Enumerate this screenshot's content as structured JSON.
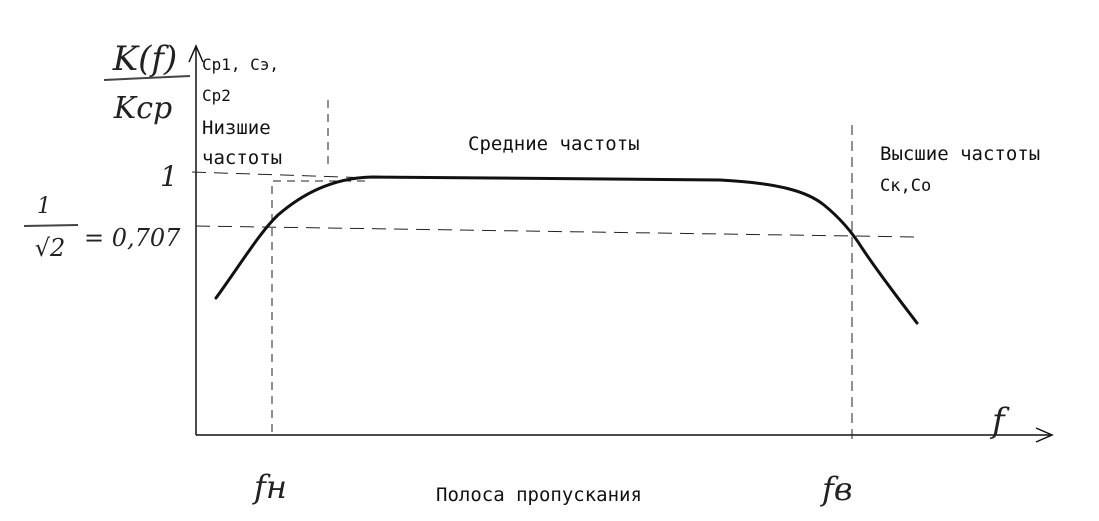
{
  "axis": {
    "y_label_num": "K(f)",
    "y_label_den": "Kср",
    "x_label": "f",
    "level_one": "1",
    "level_cut_num": "1",
    "level_cut_den": "√2",
    "level_cut_value": "= 0,707"
  },
  "regions": {
    "low_caps_line1": "Cр1, Cэ,",
    "low_caps_line2": "Cр2",
    "low_title_line1": "Низшие",
    "low_title_line2": "частоты",
    "mid_title": "Средние частоты",
    "high_title": "Высшие частоты",
    "high_caps": "Cк,Co"
  },
  "markers": {
    "f_low": "fн",
    "f_high": "fв"
  },
  "band_label": "Полоса пропускания",
  "colors": {
    "ink": "#111111",
    "pencil": "#444444"
  }
}
